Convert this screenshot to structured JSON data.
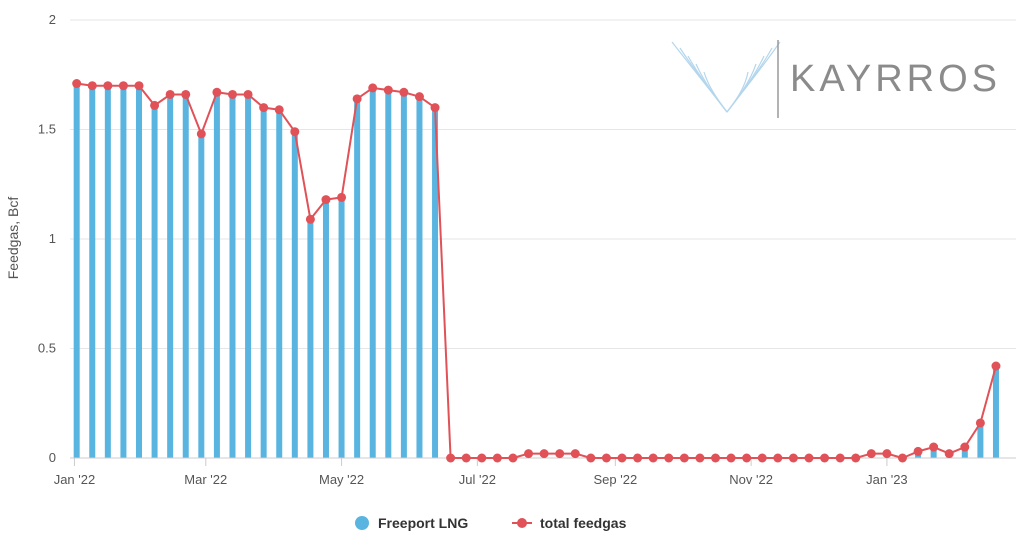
{
  "chart_data": {
    "type": "bar",
    "ylabel": "Feedgas, Bcf",
    "ylim": [
      0,
      2
    ],
    "yticks": [
      "0",
      "0.5",
      "1",
      "1.5",
      "2"
    ],
    "x_tick_labels": [
      "Jan '22",
      "Mar '22",
      "May '22",
      "Jul '22",
      "Sep '22",
      "Nov '22",
      "Jan '23"
    ],
    "x_tick_dates": [
      "2022-01-01",
      "2022-03-01",
      "2022-05-01",
      "2022-07-01",
      "2022-09-01",
      "2022-11-01",
      "2023-01-01"
    ],
    "x_range": [
      "2021-12-30",
      "2023-02-28"
    ],
    "grid": true,
    "legend": "bottom-center",
    "dates": [
      "2022-01-02",
      "2022-01-09",
      "2022-01-16",
      "2022-01-23",
      "2022-01-30",
      "2022-02-06",
      "2022-02-13",
      "2022-02-20",
      "2022-02-27",
      "2022-03-06",
      "2022-03-13",
      "2022-03-20",
      "2022-03-27",
      "2022-04-03",
      "2022-04-10",
      "2022-04-17",
      "2022-04-24",
      "2022-05-01",
      "2022-05-08",
      "2022-05-15",
      "2022-05-22",
      "2022-05-29",
      "2022-06-05",
      "2022-06-12",
      "2022-06-19",
      "2022-06-26",
      "2022-07-03",
      "2022-07-10",
      "2022-07-17",
      "2022-07-24",
      "2022-07-31",
      "2022-08-07",
      "2022-08-14",
      "2022-08-21",
      "2022-08-28",
      "2022-09-04",
      "2022-09-11",
      "2022-09-18",
      "2022-09-25",
      "2022-10-02",
      "2022-10-09",
      "2022-10-16",
      "2022-10-23",
      "2022-10-30",
      "2022-11-06",
      "2022-11-13",
      "2022-11-20",
      "2022-11-27",
      "2022-12-04",
      "2022-12-11",
      "2022-12-18",
      "2022-12-25",
      "2023-01-01",
      "2023-01-08",
      "2023-01-15",
      "2023-01-22",
      "2023-01-29",
      "2023-02-05",
      "2023-02-12",
      "2023-02-19"
    ],
    "series": [
      {
        "name": "Freeport LNG",
        "kind": "bar",
        "color": "#5ab4e0",
        "values": [
          1.71,
          1.7,
          1.7,
          1.7,
          1.7,
          1.61,
          1.66,
          1.66,
          1.48,
          1.67,
          1.66,
          1.66,
          1.6,
          1.59,
          1.49,
          1.09,
          1.18,
          1.19,
          1.64,
          1.69,
          1.68,
          1.67,
          1.65,
          1.6,
          0,
          0,
          0,
          0,
          0,
          0,
          0,
          0,
          0,
          0,
          0,
          0,
          0,
          0,
          0,
          0,
          0,
          0,
          0,
          0,
          0,
          0,
          0,
          0,
          0,
          0,
          0,
          0,
          0,
          0,
          0.03,
          0.05,
          0.02,
          0.05,
          0.16,
          0.42
        ]
      },
      {
        "name": "total feedgas",
        "kind": "line",
        "color": "#e05258",
        "values": [
          1.71,
          1.7,
          1.7,
          1.7,
          1.7,
          1.61,
          1.66,
          1.66,
          1.48,
          1.67,
          1.66,
          1.66,
          1.6,
          1.59,
          1.49,
          1.09,
          1.18,
          1.19,
          1.64,
          1.69,
          1.68,
          1.67,
          1.65,
          1.6,
          0,
          0,
          0,
          0,
          0,
          0.02,
          0.02,
          0.02,
          0.02,
          0,
          0,
          0,
          0,
          0,
          0,
          0,
          0,
          0,
          0,
          0,
          0,
          0,
          0,
          0,
          0,
          0,
          0,
          0.02,
          0.02,
          0,
          0.03,
          0.05,
          0.02,
          0.05,
          0.16,
          0.42
        ]
      }
    ]
  },
  "logo": {
    "text": "KAYRROS"
  }
}
